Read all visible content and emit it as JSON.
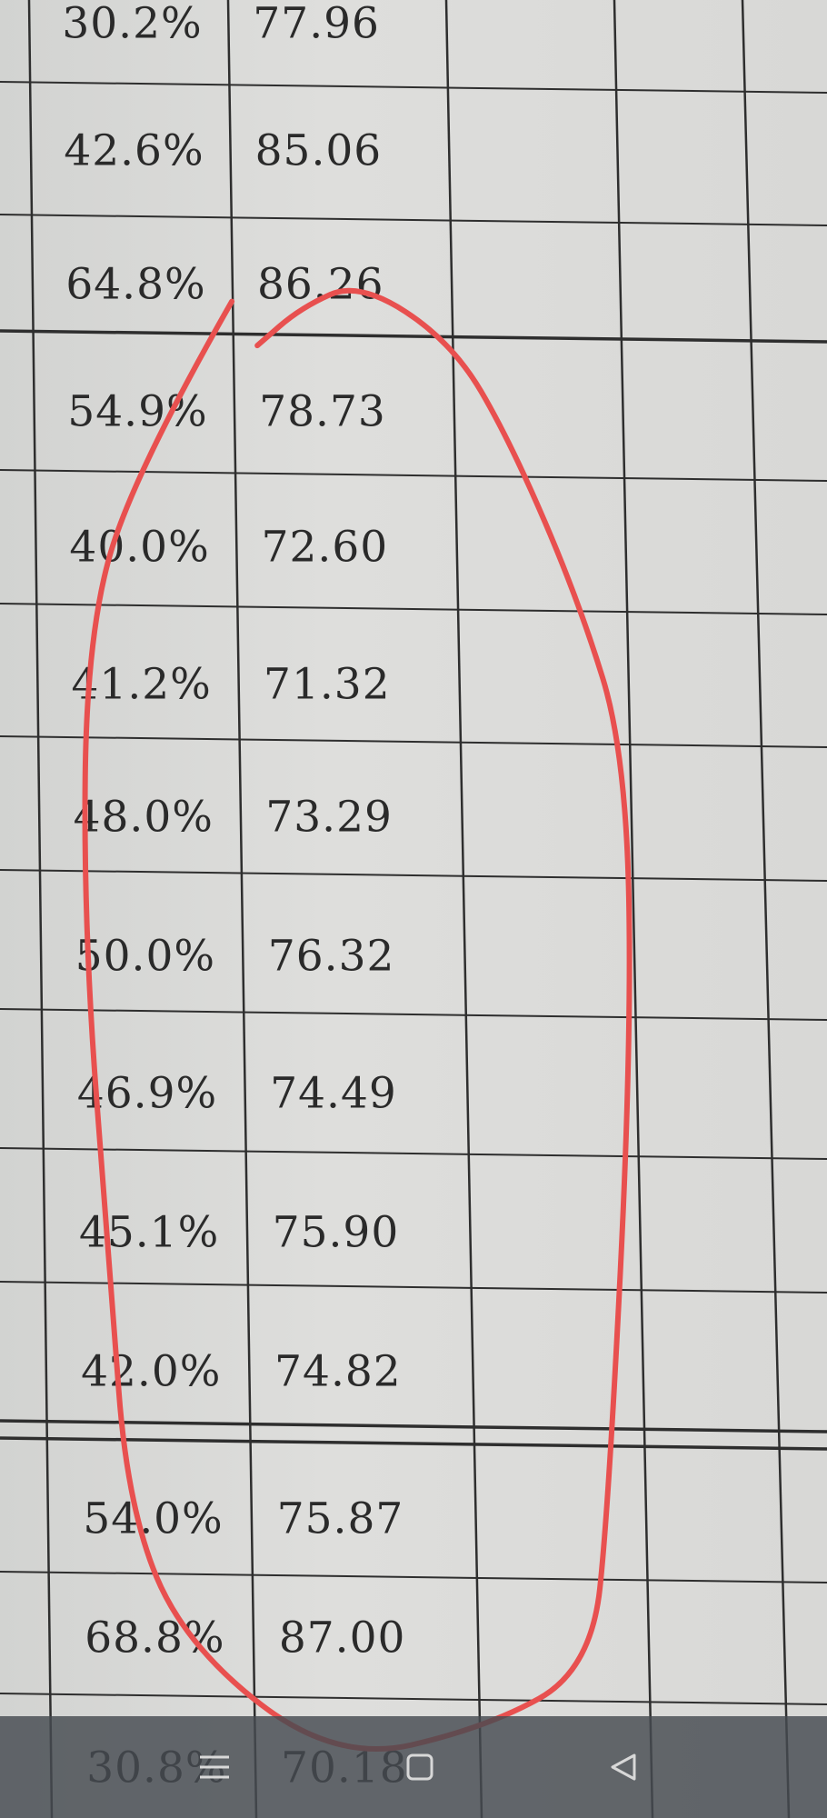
{
  "table": {
    "rows": [
      {
        "percent": "30.2%",
        "value": "77.96"
      },
      {
        "percent": "42.6%",
        "value": "85.06"
      },
      {
        "percent": "64.8%",
        "value": "86.26"
      },
      {
        "percent": "54.9%",
        "value": "78.73"
      },
      {
        "percent": "40.0%",
        "value": "72.60"
      },
      {
        "percent": "41.2%",
        "value": "71.32"
      },
      {
        "percent": "48.0%",
        "value": "73.29"
      },
      {
        "percent": "50.0%",
        "value": "76.32"
      },
      {
        "percent": "46.9%",
        "value": "74.49"
      },
      {
        "percent": "45.1%",
        "value": "75.90"
      },
      {
        "percent": "42.0%",
        "value": "74.82"
      },
      {
        "percent": "54.0%",
        "value": "75.87"
      },
      {
        "percent": "68.8%",
        "value": "87.00"
      },
      {
        "percent": "30.8%",
        "value": "70.18"
      }
    ]
  },
  "annotation": {
    "color": "#e8504f",
    "shape": "hand-drawn loop"
  },
  "navbar": {
    "icons": [
      "menu-icon",
      "home-icon",
      "back-icon"
    ]
  }
}
